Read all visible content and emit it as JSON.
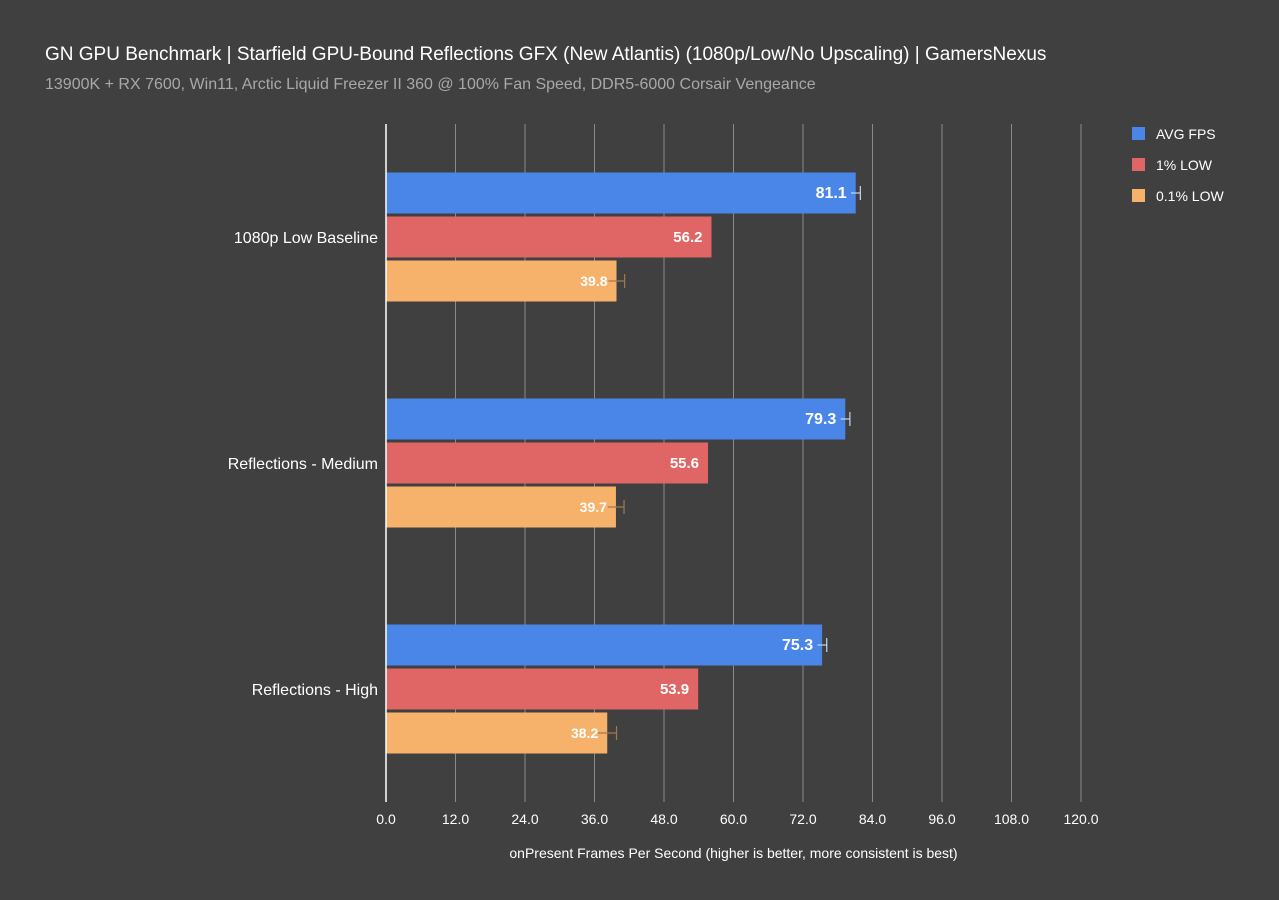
{
  "chart_data": {
    "type": "bar",
    "orientation": "horizontal",
    "title": "GN GPU Benchmark | Starfield GPU-Bound Reflections GFX (New Atlantis) (1080p/Low/No Upscaling) | GamersNexus",
    "subtitle": "13900K + RX 7600, Win11, Arctic Liquid Freezer II 360 @ 100% Fan Speed, DDR5-6000 Corsair Vengeance",
    "xlabel": "onPresent Frames Per Second (higher is better, more consistent is best)",
    "ylabel": "",
    "xlim": [
      0,
      120
    ],
    "ticks": [
      0,
      12,
      24,
      36,
      48,
      60,
      72,
      84,
      96,
      108,
      120
    ],
    "tick_labels": [
      "0.0",
      "12.0",
      "24.0",
      "36.0",
      "48.0",
      "60.0",
      "72.0",
      "84.0",
      "96.0",
      "108.0",
      "120.0"
    ],
    "grid": true,
    "legend_position": "top-right",
    "categories": [
      "1080p Low Baseline",
      "Reflections - Medium",
      "Reflections - High"
    ],
    "series": [
      {
        "name": "AVG FPS",
        "color": "#4a86e8",
        "values": [
          81.1,
          79.3,
          75.3
        ],
        "labels": [
          "81.1",
          "79.3",
          "75.3"
        ],
        "errors": [
          0.8,
          0.8,
          0.8
        ]
      },
      {
        "name": "1% LOW",
        "color": "#e06666",
        "values": [
          56.2,
          55.6,
          53.9
        ],
        "labels": [
          "56.2",
          "55.6",
          "53.9"
        ],
        "errors": [
          0.0,
          0.0,
          0.0
        ]
      },
      {
        "name": "0.1% LOW",
        "color": "#f6b26b",
        "values": [
          39.8,
          39.7,
          38.2
        ],
        "labels": [
          "39.8",
          "39.7",
          "38.2"
        ],
        "errors": [
          1.4,
          1.4,
          1.6
        ]
      }
    ]
  }
}
